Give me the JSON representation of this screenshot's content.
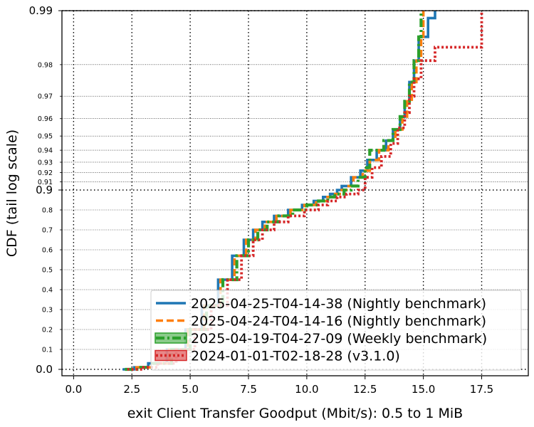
{
  "chart_data": {
    "type": "line",
    "title": "",
    "xlabel": "exit Client Transfer Goodput (Mbit/s): 0.5 to 1 MiB",
    "ylabel": "CDF (tail log scale)",
    "xlim": [
      -0.5,
      19.5
    ],
    "x_ticks": [
      0.0,
      2.5,
      5.0,
      7.5,
      10.0,
      12.5,
      15.0,
      17.5
    ],
    "x_tick_labels": [
      "0.0",
      "2.5",
      "5.0",
      "7.5",
      "10.0",
      "12.5",
      "15.0",
      "17.5"
    ],
    "y_scale": "tail-log (linear below 0.9, log of 1-p above 0.9)",
    "y_major_ticks": [
      0.0,
      0.9,
      0.99
    ],
    "y_major_labels": [
      "0.0",
      "0.9",
      "0.99"
    ],
    "y_minor_ticks": [
      0.1,
      0.2,
      0.3,
      0.4,
      0.5,
      0.6,
      0.7,
      0.8,
      0.91,
      0.92,
      0.93,
      0.94,
      0.95,
      0.96,
      0.97,
      0.98
    ],
    "y_minor_labels": [
      "0.1",
      "0.2",
      "0.3",
      "0.4",
      "0.5",
      "0.6",
      "0.7",
      "0.8",
      "0.91",
      "0.92",
      "0.93",
      "0.94",
      "0.95",
      "0.96",
      "0.97",
      "0.98"
    ],
    "grid": true,
    "legend_position": "lower-right",
    "series": [
      {
        "name": "2025-04-25-T04-14-38 (Nightly benchmark)",
        "color": "#1f77b4",
        "style": "solid",
        "points": [
          [
            2.1,
            0.0
          ],
          [
            2.6,
            0.01
          ],
          [
            3.2,
            0.03
          ],
          [
            4.0,
            0.1
          ],
          [
            4.8,
            0.2
          ],
          [
            5.5,
            0.32
          ],
          [
            6.2,
            0.45
          ],
          [
            6.8,
            0.57
          ],
          [
            7.3,
            0.65
          ],
          [
            7.7,
            0.7
          ],
          [
            8.1,
            0.74
          ],
          [
            8.6,
            0.77
          ],
          [
            9.2,
            0.8
          ],
          [
            9.8,
            0.825
          ],
          [
            10.3,
            0.845
          ],
          [
            10.7,
            0.865
          ],
          [
            11.0,
            0.88
          ],
          [
            11.3,
            0.9
          ],
          [
            11.5,
            0.905
          ],
          [
            11.9,
            0.915
          ],
          [
            12.3,
            0.922
          ],
          [
            12.6,
            0.932
          ],
          [
            13.0,
            0.94
          ],
          [
            13.4,
            0.947
          ],
          [
            13.7,
            0.954
          ],
          [
            14.0,
            0.961
          ],
          [
            14.2,
            0.968
          ],
          [
            14.4,
            0.975
          ],
          [
            14.6,
            0.981
          ],
          [
            14.8,
            0.986
          ],
          [
            15.2,
            0.989
          ],
          [
            15.5,
            0.99
          ]
        ]
      },
      {
        "name": "2025-04-24-T04-14-16 (Nightly benchmark)",
        "color": "#ff7f0e",
        "style": "dashed",
        "points": [
          [
            2.2,
            0.0
          ],
          [
            2.7,
            0.01
          ],
          [
            3.3,
            0.03
          ],
          [
            4.1,
            0.1
          ],
          [
            4.9,
            0.2
          ],
          [
            5.6,
            0.32
          ],
          [
            6.3,
            0.45
          ],
          [
            6.9,
            0.57
          ],
          [
            7.4,
            0.65
          ],
          [
            7.8,
            0.7
          ],
          [
            8.2,
            0.74
          ],
          [
            8.7,
            0.77
          ],
          [
            9.3,
            0.8
          ],
          [
            9.9,
            0.825
          ],
          [
            10.4,
            0.845
          ],
          [
            10.8,
            0.865
          ],
          [
            11.1,
            0.88
          ],
          [
            11.5,
            0.9
          ],
          [
            11.7,
            0.905
          ],
          [
            12.0,
            0.915
          ],
          [
            12.4,
            0.922
          ],
          [
            12.7,
            0.932
          ],
          [
            13.1,
            0.94
          ],
          [
            13.5,
            0.947
          ],
          [
            13.8,
            0.954
          ],
          [
            14.1,
            0.961
          ],
          [
            14.3,
            0.968
          ],
          [
            14.5,
            0.975
          ],
          [
            14.7,
            0.981
          ],
          [
            14.9,
            0.986
          ],
          [
            15.0,
            0.99
          ]
        ]
      },
      {
        "name": "2025-04-19-T04-27-09 (Weekly benchmark)",
        "color": "#2ca02c",
        "style": "dashdot",
        "points": [
          [
            2.2,
            0.0
          ],
          [
            2.8,
            0.01
          ],
          [
            3.4,
            0.03
          ],
          [
            4.2,
            0.1
          ],
          [
            5.0,
            0.2
          ],
          [
            5.7,
            0.32
          ],
          [
            6.4,
            0.45
          ],
          [
            7.0,
            0.57
          ],
          [
            7.5,
            0.65
          ],
          [
            7.9,
            0.7
          ],
          [
            8.3,
            0.74
          ],
          [
            8.8,
            0.77
          ],
          [
            9.4,
            0.8
          ],
          [
            10.0,
            0.825
          ],
          [
            10.5,
            0.845
          ],
          [
            10.9,
            0.865
          ],
          [
            11.2,
            0.88
          ],
          [
            11.6,
            0.9
          ],
          [
            11.9,
            0.905
          ],
          [
            12.2,
            0.915
          ],
          [
            12.5,
            0.925
          ],
          [
            12.7,
            0.94
          ],
          [
            13.3,
            0.947
          ],
          [
            13.7,
            0.954
          ],
          [
            14.0,
            0.961
          ],
          [
            14.2,
            0.968
          ],
          [
            14.4,
            0.975
          ],
          [
            14.6,
            0.981
          ],
          [
            14.8,
            0.986
          ],
          [
            14.9,
            0.99
          ]
        ]
      },
      {
        "name": "2024-01-01-T02-18-28 (v3.1.0)",
        "color": "#d62728",
        "style": "dotted",
        "points": [
          [
            2.3,
            0.0
          ],
          [
            3.0,
            0.01
          ],
          [
            3.6,
            0.03
          ],
          [
            4.4,
            0.1
          ],
          [
            5.2,
            0.2
          ],
          [
            5.9,
            0.32
          ],
          [
            6.6,
            0.45
          ],
          [
            7.2,
            0.57
          ],
          [
            7.7,
            0.65
          ],
          [
            8.1,
            0.7
          ],
          [
            8.6,
            0.74
          ],
          [
            9.2,
            0.77
          ],
          [
            9.9,
            0.8
          ],
          [
            10.5,
            0.825
          ],
          [
            10.9,
            0.845
          ],
          [
            11.3,
            0.865
          ],
          [
            11.7,
            0.88
          ],
          [
            12.2,
            0.9
          ],
          [
            12.5,
            0.915
          ],
          [
            12.8,
            0.925
          ],
          [
            13.2,
            0.935
          ],
          [
            13.6,
            0.945
          ],
          [
            13.9,
            0.955
          ],
          [
            14.2,
            0.963
          ],
          [
            14.4,
            0.97
          ],
          [
            14.6,
            0.976
          ],
          [
            14.9,
            0.981
          ],
          [
            15.5,
            0.984
          ],
          [
            17.5,
            0.987
          ],
          [
            17.5,
            0.99
          ]
        ]
      }
    ]
  }
}
